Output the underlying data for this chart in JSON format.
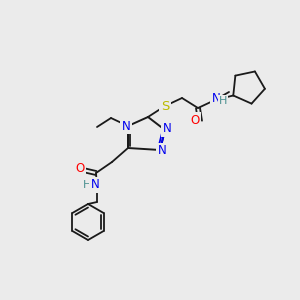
{
  "bg_color": "#ebebeb",
  "atom_colors": {
    "C": "#000000",
    "N": "#0000ee",
    "O": "#ff0000",
    "S": "#bbbb00",
    "H": "#4a9090"
  },
  "bond_color": "#1a1a1a",
  "font_size": 8.5
}
